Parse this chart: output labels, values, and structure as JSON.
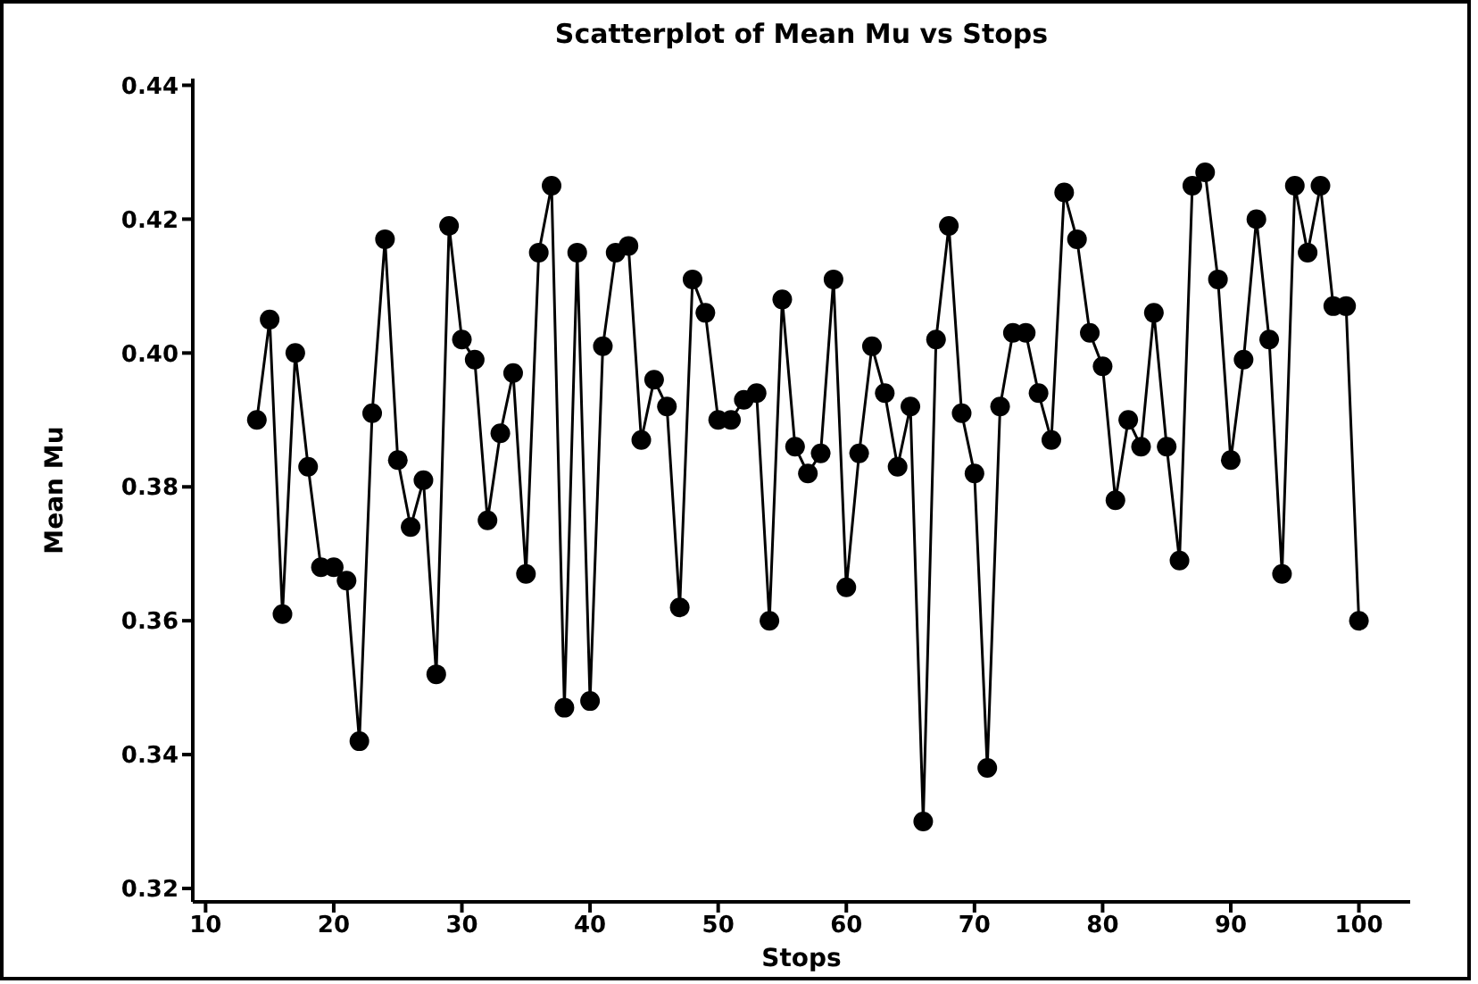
{
  "chart_data": {
    "type": "line",
    "title": "Scatterplot of Mean Mu vs Stops",
    "xlabel": "Stops",
    "ylabel": "Mean Mu",
    "marker": "circle",
    "line_style": "solid",
    "grid": false,
    "legend": false,
    "x": [
      14,
      15,
      16,
      17,
      18,
      19,
      20,
      21,
      22,
      23,
      24,
      25,
      26,
      27,
      28,
      29,
      30,
      31,
      32,
      33,
      34,
      35,
      36,
      37,
      38,
      39,
      40,
      41,
      42,
      43,
      44,
      45,
      46,
      47,
      48,
      49,
      50,
      51,
      52,
      53,
      54,
      55,
      56,
      57,
      58,
      59,
      60,
      61,
      62,
      63,
      64,
      65,
      66,
      67,
      68,
      69,
      70,
      71,
      72,
      73,
      74,
      75,
      76,
      77,
      78,
      79,
      80,
      81,
      82,
      83,
      84,
      85,
      86,
      87,
      88,
      89,
      90,
      91,
      92,
      93,
      94,
      95,
      96,
      97,
      98,
      99,
      100
    ],
    "series": [
      {
        "color": "#000000",
        "values": [
          0.39,
          0.405,
          0.361,
          0.4,
          0.383,
          0.368,
          0.368,
          0.366,
          0.342,
          0.391,
          0.417,
          0.384,
          0.374,
          0.381,
          0.352,
          0.419,
          0.402,
          0.399,
          0.375,
          0.388,
          0.397,
          0.367,
          0.415,
          0.425,
          0.347,
          0.415,
          0.348,
          0.401,
          0.415,
          0.416,
          0.387,
          0.396,
          0.392,
          0.362,
          0.411,
          0.406,
          0.39,
          0.39,
          0.393,
          0.394,
          0.36,
          0.408,
          0.386,
          0.382,
          0.385,
          0.411,
          0.365,
          0.385,
          0.401,
          0.394,
          0.383,
          0.392,
          0.33,
          0.402,
          0.419,
          0.391,
          0.382,
          0.338,
          0.392,
          0.403,
          0.403,
          0.394,
          0.387,
          0.424,
          0.417,
          0.403,
          0.398,
          0.378,
          0.39,
          0.386,
          0.406,
          0.386,
          0.369,
          0.425,
          0.427,
          0.411,
          0.384,
          0.399,
          0.42,
          0.402,
          0.367,
          0.425,
          0.415,
          0.425,
          0.407,
          0.407,
          0.36
        ]
      }
    ],
    "xlim": [
      9,
      104
    ],
    "xticks": [
      10,
      20,
      30,
      40,
      50,
      60,
      70,
      80,
      90,
      100
    ],
    "ylim": [
      0.318,
      0.441
    ],
    "yticks": [
      0.32,
      0.34,
      0.36,
      0.38,
      {
        "value": 0.4,
        "label": "0.40"
      },
      0.42,
      0.44
    ]
  }
}
